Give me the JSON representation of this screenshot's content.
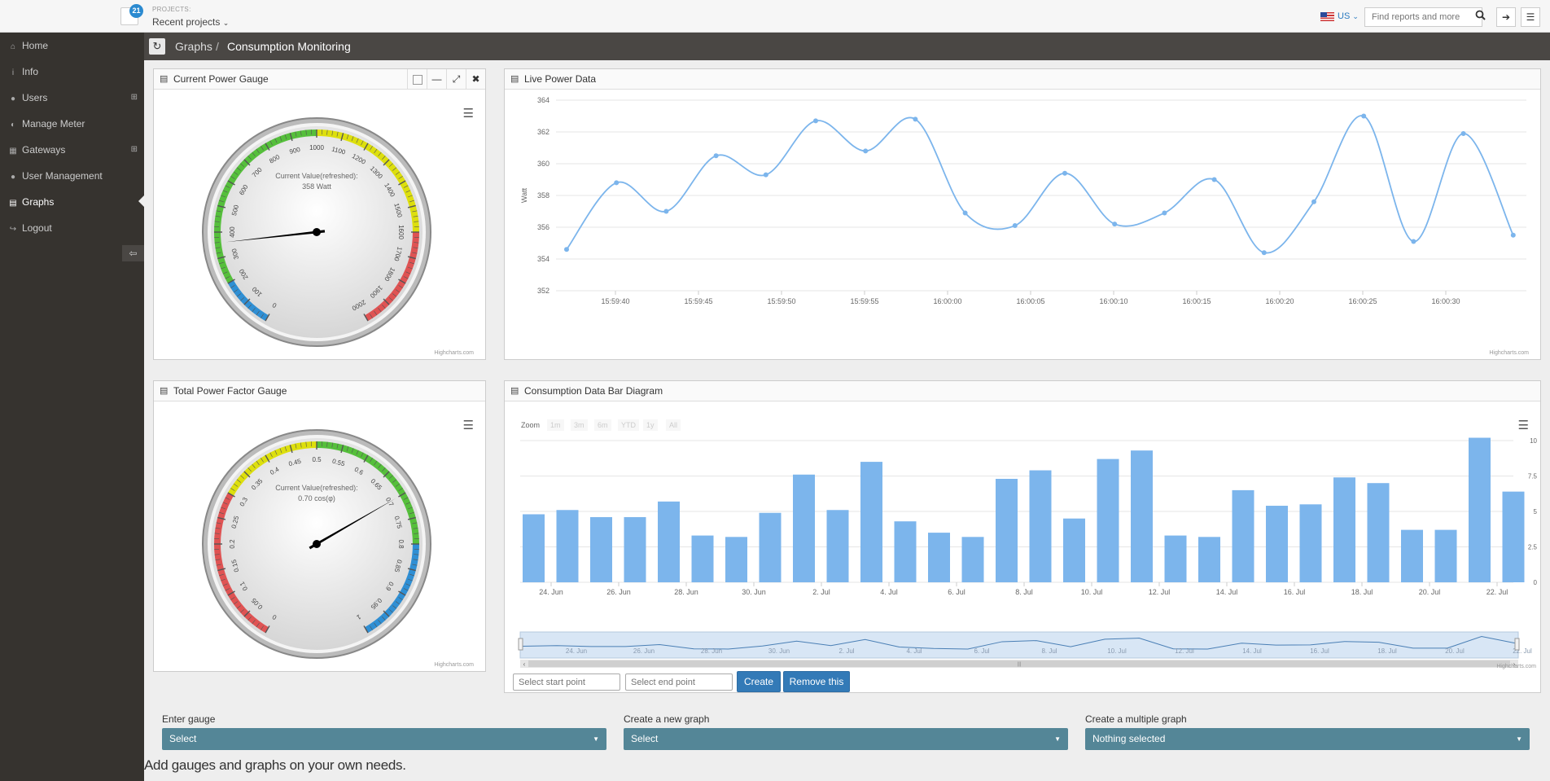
{
  "topbar": {
    "notification_count": "21",
    "projects_label": "PROJECTS:",
    "recent_projects": "Recent projects",
    "language": "US",
    "search_placeholder": "Find reports and more"
  },
  "sidebar": {
    "items": [
      {
        "label": "Home",
        "icon": "home-icon"
      },
      {
        "label": "Info",
        "icon": "info-icon"
      },
      {
        "label": "Users",
        "icon": "user-icon"
      },
      {
        "label": "Manage Meter",
        "icon": "tachometer-icon"
      },
      {
        "label": "Gateways",
        "icon": "sitemap-icon"
      },
      {
        "label": "User Management",
        "icon": "user-icon"
      },
      {
        "label": "Graphs",
        "icon": "bar-chart-icon"
      },
      {
        "label": "Logout",
        "icon": "sign-out-icon"
      }
    ],
    "active": "Graphs"
  },
  "breadcrumb": {
    "parent": "Graphs",
    "separator": "/",
    "current": "Consumption Monitoring"
  },
  "panels": {
    "current_power": {
      "title": "Current Power Gauge"
    },
    "live_power": {
      "title": "Live Power Data"
    },
    "power_factor": {
      "title": "Total Power Factor Gauge"
    },
    "bar_diagram": {
      "title": "Consumption Data Bar Diagram"
    }
  },
  "credit": "Highcharts.com",
  "zoom": {
    "label": "Zoom",
    "buttons": [
      "1m",
      "3m",
      "6m",
      "YTD",
      "1y",
      "All"
    ]
  },
  "range": {
    "start_placeholder": "Select start point",
    "end_placeholder": "Select end point",
    "create_label": "Create",
    "remove_label": "Remove this"
  },
  "forms": {
    "gauge": {
      "label": "Enter gauge",
      "value": "Select"
    },
    "new_graph": {
      "label": "Create a new graph",
      "value": "Select"
    },
    "multiple_graph": {
      "label": "Create a multiple graph",
      "value": "Nothing selected"
    }
  },
  "footer_text": "Add gauges and graphs on your own needs.",
  "colors": {
    "line": "#7cb5ec",
    "sidebar": "#36332f",
    "select": "#548697",
    "button": "#337ab7"
  },
  "chart_data": [
    {
      "type": "gauge",
      "min": 0,
      "max": 2000,
      "tick_labels": [
        "0",
        "100",
        "200",
        "300",
        "400",
        "500",
        "600",
        "700",
        "800",
        "900",
        "1000",
        "1100",
        "1200",
        "1300",
        "1400",
        "1500",
        "1600",
        "1700",
        "1800",
        "1900",
        "2000"
      ],
      "bands": [
        {
          "from": 0,
          "to": 200,
          "color": "#2f8fd4"
        },
        {
          "from": 200,
          "to": 1000,
          "color": "#55bf3b"
        },
        {
          "from": 1000,
          "to": 1600,
          "color": "#dddf0d"
        },
        {
          "from": 1600,
          "to": 2000,
          "color": "#df5353"
        }
      ],
      "value": 358,
      "label_line1": "Current Value(refreshed):",
      "label_line2": "358 Watt"
    },
    {
      "type": "line",
      "ylabel": "Watt",
      "ylim": [
        352,
        364
      ],
      "yticks": [
        "352",
        "354",
        "356",
        "358",
        "360",
        "362",
        "364"
      ],
      "x_labels": [
        "15:59:40",
        "15:59:45",
        "15:59:50",
        "15:59:55",
        "16:00:00",
        "16:00:05",
        "16:00:10",
        "16:00:15",
        "16:00:20",
        "16:00:25",
        "16:00:30"
      ],
      "values": [
        354.6,
        358.8,
        357.0,
        360.5,
        359.3,
        362.7,
        360.8,
        362.8,
        356.9,
        356.1,
        359.4,
        356.2,
        356.9,
        359.0,
        354.4,
        357.6,
        363.0,
        355.1,
        361.9,
        355.5
      ]
    },
    {
      "type": "gauge",
      "min": 0,
      "max": 1,
      "tick_labels": [
        "0",
        "0.05",
        "0.1",
        "0.15",
        "0.2",
        "0.25",
        "0.3",
        "0.35",
        "0.4",
        "0.45",
        "0.5",
        "0.55",
        "0.6",
        "0.65",
        "0.7",
        "0.75",
        "0.8",
        "0.85",
        "0.9",
        "0.95",
        "1"
      ],
      "bands": [
        {
          "from": 0,
          "to": 0.3,
          "color": "#df5353"
        },
        {
          "from": 0.3,
          "to": 0.5,
          "color": "#dddf0d"
        },
        {
          "from": 0.5,
          "to": 0.8,
          "color": "#55bf3b"
        },
        {
          "from": 0.8,
          "to": 1,
          "color": "#2f8fd4"
        }
      ],
      "value": 0.7,
      "label_line1": "Current Value(refreshed):",
      "label_line2": "0.70 cos(φ)"
    },
    {
      "type": "bar",
      "ylim": [
        0,
        10
      ],
      "yticks": [
        "0",
        "2.5",
        "5",
        "7.5",
        "10"
      ],
      "x_labels": [
        "24. Jun",
        "26. Jun",
        "28. Jun",
        "30. Jun",
        "2. Jul",
        "4. Jul",
        "6. Jul",
        "8. Jul",
        "10. Jul",
        "12. Jul",
        "14. Jul",
        "16. Jul",
        "18. Jul",
        "20. Jul",
        "22. Jul"
      ],
      "values": [
        4.8,
        5.1,
        4.6,
        4.6,
        5.7,
        3.3,
        3.2,
        4.9,
        7.6,
        5.1,
        8.5,
        4.3,
        3.5,
        3.2,
        7.3,
        7.9,
        4.5,
        8.7,
        9.3,
        3.3,
        3.2,
        6.5,
        5.4,
        5.5,
        7.4,
        7.0,
        3.7,
        3.7,
        10.2,
        6.4
      ],
      "navigator_labels": [
        "24. Jun",
        "26. Jun",
        "28. Jun",
        "30. Jun",
        "2. Jul",
        "4. Jul",
        "6. Jul",
        "8. Jul",
        "10. Jul",
        "12. Jul",
        "14. Jul",
        "16. Jul",
        "18. Jul",
        "20. Jul",
        "22. Jul"
      ]
    }
  ]
}
